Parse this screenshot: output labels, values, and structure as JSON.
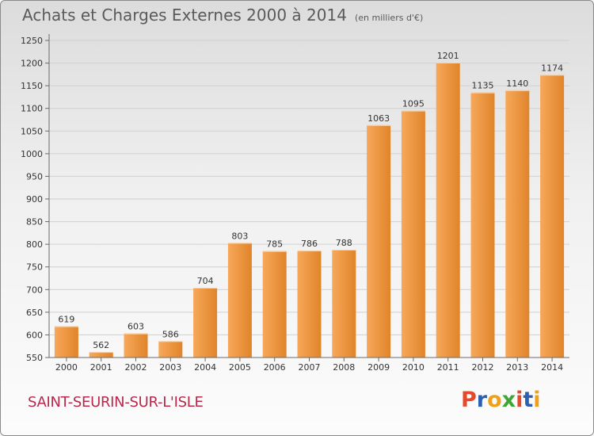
{
  "header": {
    "title": "Achats et Charges Externes 2000 à 2014",
    "unit": "(en milliers d'€)"
  },
  "footer": {
    "commune": "SAINT-SEURIN-SUR-L'ISLE",
    "logo": "Proxiti",
    "logo_colors": [
      "#e8482a",
      "#2b5fb4",
      "#f0a018",
      "#3fa535",
      "#e8482a",
      "#2b5fb4",
      "#f0a018"
    ]
  },
  "colors": {
    "bar_light": "#f7a85a",
    "bar_dark": "#e0842a",
    "grid": "#d0d0d0",
    "axis": "#6a6a6a",
    "text": "#333333"
  },
  "chart_data": {
    "type": "bar",
    "title": "Achats et Charges Externes 2000 à 2014",
    "subtitle": "(en milliers d'€)",
    "categories": [
      "2000",
      "2001",
      "2002",
      "2003",
      "2004",
      "2005",
      "2006",
      "2007",
      "2008",
      "2009",
      "2010",
      "2011",
      "2012",
      "2013",
      "2014"
    ],
    "values": [
      619,
      562,
      603,
      586,
      704,
      803,
      785,
      786,
      788,
      1063,
      1095,
      1201,
      1135,
      1140,
      1174
    ],
    "yticks": [
      550,
      600,
      650,
      700,
      750,
      800,
      850,
      900,
      950,
      1000,
      1050,
      1100,
      1150,
      1200,
      1250
    ],
    "ylim": [
      550,
      1250
    ],
    "grid": true,
    "legend": "none"
  }
}
